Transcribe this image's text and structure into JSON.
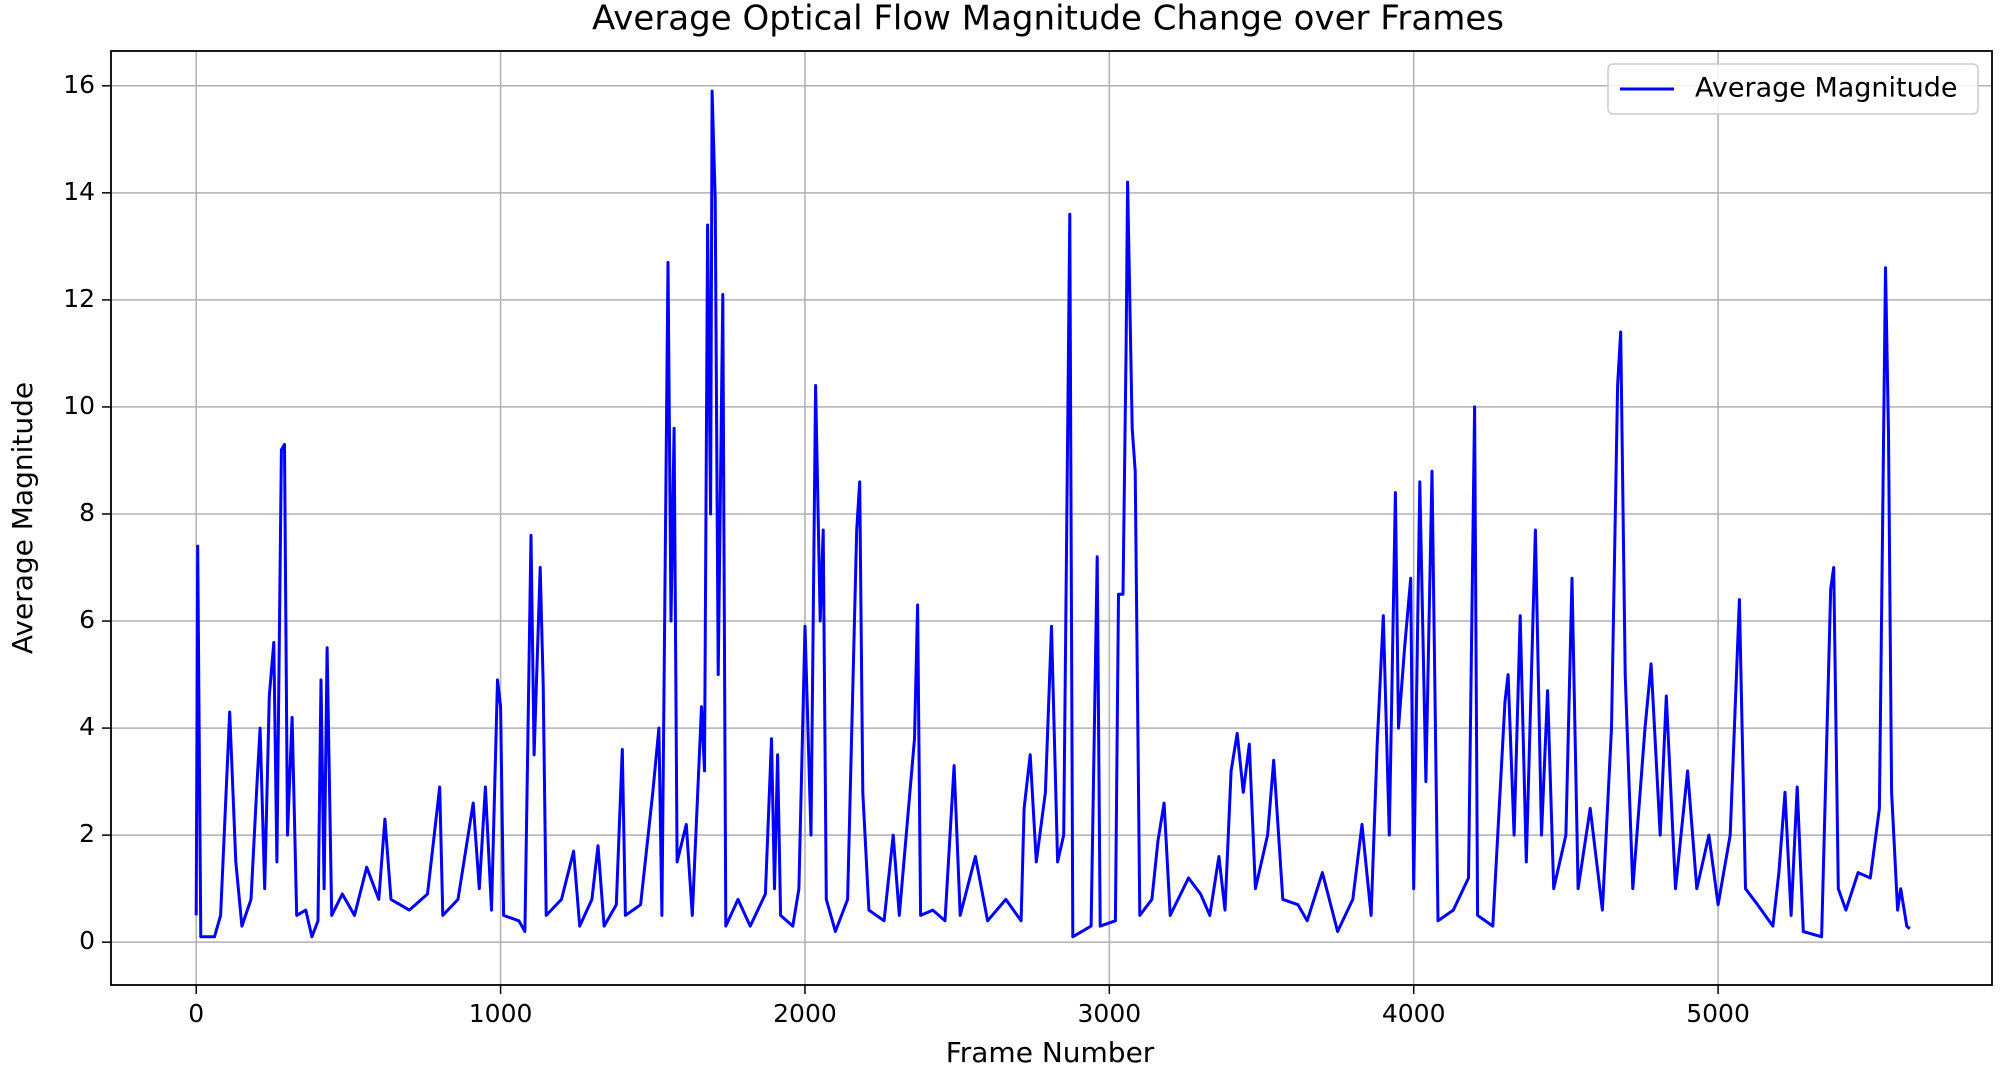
{
  "chart_data": {
    "type": "line",
    "title": "Average Optical Flow Magnitude Change over Frames",
    "x_label": "Frame Number",
    "y_label": "Average Magnitude",
    "xlim": [
      -280,
      5900
    ],
    "ylim": [
      -0.8,
      16.65
    ],
    "xticks": [
      0,
      1000,
      2000,
      3000,
      4000,
      5000
    ],
    "yticks": [
      0,
      2,
      4,
      6,
      8,
      10,
      12,
      14,
      16
    ],
    "grid": true,
    "legend": "upper right",
    "x": [
      0,
      5,
      15,
      60,
      80,
      110,
      130,
      150,
      180,
      200,
      210,
      225,
      240,
      255,
      265,
      280,
      290,
      300,
      315,
      330,
      360,
      380,
      400,
      410,
      420,
      430,
      445,
      480,
      520,
      560,
      600,
      620,
      640,
      700,
      760,
      800,
      810,
      860,
      910,
      930,
      950,
      970,
      990,
      1000,
      1010,
      1060,
      1080,
      1100,
      1110,
      1130,
      1140,
      1150,
      1200,
      1240,
      1260,
      1300,
      1320,
      1340,
      1380,
      1400,
      1410,
      1460,
      1500,
      1520,
      1530,
      1550,
      1560,
      1570,
      1580,
      1610,
      1630,
      1660,
      1670,
      1680,
      1690,
      1695,
      1705,
      1715,
      1730,
      1740,
      1780,
      1820,
      1870,
      1890,
      1900,
      1910,
      1920,
      1960,
      1980,
      2000,
      2020,
      2035,
      2050,
      2060,
      2070,
      2100,
      2140,
      2170,
      2180,
      2190,
      2210,
      2260,
      2290,
      2310,
      2360,
      2370,
      2380,
      2420,
      2460,
      2490,
      2510,
      2560,
      2600,
      2660,
      2710,
      2720,
      2740,
      2760,
      2790,
      2810,
      2830,
      2850,
      2870,
      2880,
      2940,
      2960,
      2970,
      3020,
      3030,
      3045,
      3055,
      3060,
      3075,
      3085,
      3100,
      3140,
      3160,
      3180,
      3200,
      3260,
      3300,
      3330,
      3360,
      3380,
      3400,
      3420,
      3440,
      3460,
      3480,
      3520,
      3540,
      3570,
      3620,
      3650,
      3700,
      3750,
      3800,
      3830,
      3860,
      3880,
      3900,
      3920,
      3940,
      3950,
      3970,
      3990,
      4000,
      4020,
      4040,
      4060,
      4080,
      4130,
      4180,
      4200,
      4210,
      4260,
      4300,
      4310,
      4330,
      4350,
      4370,
      4400,
      4420,
      4440,
      4460,
      4500,
      4520,
      4540,
      4580,
      4620,
      4650,
      4670,
      4680,
      4695,
      4720,
      4760,
      4780,
      4810,
      4830,
      4860,
      4900,
      4930,
      4970,
      5000,
      5040,
      5070,
      5090,
      5130,
      5180,
      5200,
      5220,
      5240,
      5260,
      5280,
      5340,
      5370,
      5380,
      5395,
      5420,
      5460,
      5500,
      5530,
      5550,
      5560,
      5570,
      5590,
      5600,
      5620,
      5630
    ],
    "series": [
      {
        "name": "Average Magnitude",
        "color": "#0000ff",
        "values": [
          0.5,
          7.4,
          0.1,
          0.1,
          0.5,
          4.3,
          1.5,
          0.3,
          0.8,
          3.0,
          4.0,
          1.0,
          4.6,
          5.6,
          1.5,
          9.2,
          9.3,
          2.0,
          4.2,
          0.5,
          0.6,
          0.1,
          0.4,
          4.9,
          1.0,
          5.5,
          0.5,
          0.9,
          0.5,
          1.4,
          0.8,
          2.3,
          0.8,
          0.6,
          0.9,
          2.9,
          0.5,
          0.8,
          2.6,
          1.0,
          2.9,
          0.6,
          4.9,
          4.4,
          0.5,
          0.4,
          0.2,
          7.6,
          3.5,
          7.0,
          4.8,
          0.5,
          0.8,
          1.7,
          0.3,
          0.8,
          1.8,
          0.3,
          0.7,
          3.6,
          0.5,
          0.7,
          2.8,
          4.0,
          0.5,
          12.7,
          6.0,
          9.6,
          1.5,
          2.2,
          0.5,
          4.4,
          3.2,
          13.4,
          8.0,
          15.9,
          13.9,
          5.0,
          12.1,
          0.3,
          0.8,
          0.3,
          0.9,
          3.8,
          1.0,
          3.5,
          0.5,
          0.3,
          1.0,
          5.9,
          2.0,
          10.4,
          6.0,
          7.7,
          0.8,
          0.2,
          0.8,
          7.7,
          8.6,
          2.8,
          0.6,
          0.4,
          2.0,
          0.5,
          3.8,
          6.3,
          0.5,
          0.6,
          0.4,
          3.3,
          0.5,
          1.6,
          0.4,
          0.8,
          0.4,
          2.5,
          3.5,
          1.5,
          2.8,
          5.9,
          1.5,
          2.0,
          13.6,
          0.1,
          0.3,
          7.2,
          0.3,
          0.4,
          6.5,
          6.5,
          11.1,
          14.2,
          9.6,
          8.8,
          0.5,
          0.8,
          1.9,
          2.6,
          0.5,
          1.2,
          0.9,
          0.5,
          1.6,
          0.6,
          3.2,
          3.9,
          2.8,
          3.7,
          1.0,
          2.0,
          3.4,
          0.8,
          0.7,
          0.4,
          1.3,
          0.2,
          0.8,
          2.2,
          0.5,
          3.7,
          6.1,
          2.0,
          8.4,
          4.0,
          5.5,
          6.8,
          1.0,
          8.6,
          3.0,
          8.8,
          0.4,
          0.6,
          1.2,
          10.0,
          0.5,
          0.3,
          4.5,
          5.0,
          2.0,
          6.1,
          1.5,
          7.7,
          2.0,
          4.7,
          1.0,
          2.0,
          6.8,
          1.0,
          2.5,
          0.6,
          4.0,
          10.4,
          11.4,
          5.0,
          1.0,
          4.0,
          5.2,
          2.0,
          4.6,
          1.0,
          3.2,
          1.0,
          2.0,
          0.7,
          2.0,
          6.4,
          1.0,
          0.7,
          0.3,
          1.3,
          2.8,
          0.5,
          2.9,
          0.2,
          0.1,
          6.6,
          7.0,
          1.0,
          0.6,
          1.3,
          1.2,
          2.5,
          12.6,
          9.5,
          2.8,
          0.6,
          1.0,
          0.3,
          0.25
        ]
      }
    ]
  }
}
